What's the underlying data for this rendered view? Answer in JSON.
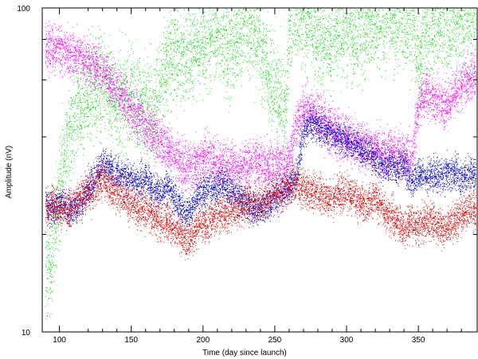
{
  "chart_data": {
    "type": "scatter",
    "title": "",
    "xlabel": "Time (day since launch)",
    "ylabel": "Amplitude (nV)",
    "xlim": [
      88,
      391
    ],
    "ylim": [
      10,
      100
    ],
    "yscale": "log",
    "grid": false,
    "legend": "none",
    "x_ticks": [
      100,
      150,
      200,
      250,
      300,
      350
    ],
    "x_minor_ticks": [
      120,
      130,
      140,
      160,
      170,
      180,
      190,
      210,
      220,
      230,
      240,
      260,
      270,
      280,
      290,
      310,
      320,
      330,
      340,
      360,
      370,
      380
    ],
    "y_ticks": [
      10,
      100
    ],
    "y_minor_ticks": [
      20,
      40,
      60,
      80
    ],
    "series": [
      {
        "color": "#00dd00",
        "x": [
          90,
          95,
          100,
          105,
          110,
          115,
          120,
          125,
          130,
          135,
          140,
          145,
          150,
          155,
          160,
          165,
          170,
          175,
          180,
          185,
          190,
          195,
          200,
          205,
          210,
          215,
          220,
          225,
          230,
          235,
          240,
          245,
          250,
          255,
          258,
          260,
          263,
          266,
          270,
          275,
          280,
          285,
          290,
          295,
          300,
          305,
          310,
          315,
          320,
          325,
          330,
          335,
          340,
          343,
          346,
          350,
          355,
          360,
          365,
          370,
          375,
          380,
          385,
          390
        ],
        "y": [
          14,
          18,
          28,
          40,
          45,
          50,
          55,
          58,
          60,
          55,
          50,
          52,
          56,
          50,
          48,
          46,
          58,
          68,
          75,
          70,
          72,
          78,
          75,
          82,
          85,
          80,
          75,
          85,
          90,
          85,
          78,
          65,
          55,
          50,
          48,
          92,
          98,
          95,
          92,
          90,
          82,
          80,
          84,
          88,
          86,
          84,
          87,
          90,
          92,
          94,
          95,
          96,
          97,
          96,
          90,
          64,
          88,
          89,
          90,
          91,
          92,
          93,
          94,
          94
        ],
        "spread": 0.11
      },
      {
        "color": "#ff00ff",
        "x": [
          90,
          95,
          100,
          105,
          110,
          115,
          120,
          125,
          130,
          135,
          140,
          145,
          150,
          155,
          160,
          165,
          170,
          175,
          180,
          185,
          190,
          195,
          200,
          205,
          210,
          215,
          220,
          225,
          230,
          235,
          240,
          245,
          250,
          255,
          258,
          260,
          265,
          270,
          275,
          280,
          285,
          290,
          295,
          300,
          305,
          310,
          315,
          320,
          325,
          330,
          335,
          340,
          345,
          350,
          355,
          360,
          365,
          370,
          375,
          380,
          385,
          390
        ],
        "y": [
          76,
          75,
          74,
          73,
          72,
          71,
          68,
          66,
          64,
          60,
          56,
          52,
          49,
          46,
          43,
          41,
          39,
          37,
          35,
          33,
          32,
          33,
          34,
          35,
          33,
          33,
          33,
          32,
          33,
          34,
          33,
          32,
          33,
          33,
          33,
          34,
          44,
          49,
          48,
          46,
          44,
          42,
          41,
          40,
          39,
          38,
          37,
          37,
          36,
          36,
          35,
          35,
          34,
          50,
          55,
          53,
          51,
          50,
          54,
          58,
          60,
          62
        ],
        "spread": 0.05
      },
      {
        "color": "#0000cc",
        "x": [
          90,
          95,
          100,
          105,
          110,
          115,
          120,
          125,
          130,
          135,
          140,
          145,
          150,
          155,
          160,
          165,
          170,
          175,
          180,
          185,
          190,
          195,
          200,
          205,
          210,
          215,
          220,
          225,
          230,
          235,
          240,
          245,
          250,
          255,
          260,
          265,
          270,
          275,
          280,
          285,
          290,
          295,
          300,
          305,
          310,
          315,
          320,
          325,
          330,
          335,
          340,
          345,
          350,
          355,
          360,
          365,
          370,
          375,
          380,
          385,
          390
        ],
        "y": [
          25,
          24,
          25,
          24,
          24,
          25,
          28,
          30,
          33,
          32,
          31,
          30,
          30,
          29,
          30,
          28,
          27,
          28,
          26,
          24,
          23,
          26,
          27,
          28,
          28,
          29,
          27,
          26,
          25,
          24,
          24,
          25,
          26,
          27,
          28,
          30,
          42,
          44,
          43,
          42,
          41,
          40,
          39,
          38,
          37,
          36,
          34,
          33,
          33,
          32,
          33,
          29,
          31,
          30,
          31,
          30,
          31,
          31,
          30,
          31,
          31
        ],
        "spread": 0.035
      },
      {
        "color": "#dd0000",
        "x": [
          90,
          95,
          100,
          105,
          110,
          115,
          120,
          125,
          130,
          135,
          140,
          145,
          150,
          155,
          160,
          165,
          170,
          175,
          180,
          185,
          190,
          195,
          200,
          205,
          210,
          215,
          220,
          225,
          230,
          235,
          240,
          245,
          250,
          255,
          260,
          265,
          270,
          275,
          280,
          285,
          290,
          295,
          300,
          305,
          310,
          315,
          320,
          325,
          330,
          335,
          340,
          345,
          350,
          355,
          360,
          365,
          370,
          375,
          380,
          385,
          390
        ],
        "y": [
          24,
          25,
          24,
          24,
          25,
          26,
          27,
          28,
          30,
          28,
          27,
          26,
          25,
          24,
          24,
          23,
          22,
          22,
          21,
          20,
          19,
          21,
          22,
          22,
          23,
          23,
          24,
          24,
          25,
          25,
          25,
          26,
          27,
          27,
          28,
          29,
          28,
          27,
          27,
          26,
          26,
          27,
          27,
          26,
          25,
          25,
          26,
          24,
          23,
          22,
          21,
          22,
          21,
          22,
          22,
          21,
          21,
          22,
          23,
          24,
          24
        ],
        "spread": 0.04
      }
    ]
  }
}
